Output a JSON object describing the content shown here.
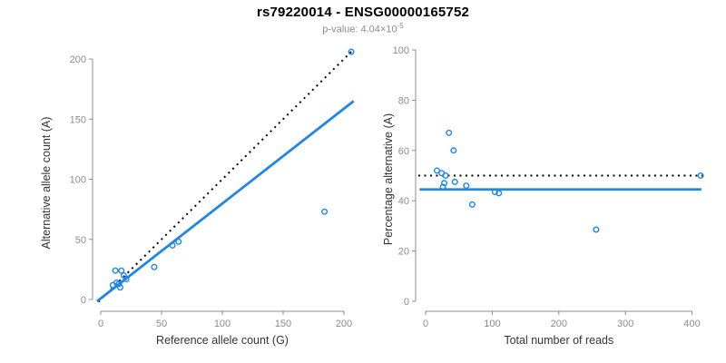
{
  "header": {
    "title": "rs79220014 - ENSG00000165752",
    "subtitle_prefix": "p-value: 4.04×10",
    "subtitle_exponent": "-5"
  },
  "colors": {
    "accent_blue": "#1e86e5",
    "axis_gray": "#8c8c8c",
    "tick_label_gray": "#8c8c8c",
    "axis_title_dark": "#333333",
    "dotted_line_black": "#000000",
    "background": "#ffffff"
  },
  "chart_data": [
    {
      "type": "scatter",
      "name": "allele-counts-scatter",
      "xlabel": "Reference allele count (G)",
      "ylabel": "Alternative allele count (A)",
      "xlim": [
        0,
        200
      ],
      "ylim": [
        0,
        200
      ],
      "xticks": [
        0,
        50,
        100,
        150,
        200
      ],
      "yticks": [
        0,
        50,
        100,
        150,
        200
      ],
      "grid": false,
      "points": [
        [
          10,
          12
        ],
        [
          13,
          14
        ],
        [
          15,
          13
        ],
        [
          16,
          10
        ],
        [
          12,
          24
        ],
        [
          17,
          24
        ],
        [
          19,
          20
        ],
        [
          21,
          17
        ],
        [
          44,
          27
        ],
        [
          59,
          45
        ],
        [
          64,
          48
        ],
        [
          184,
          73
        ],
        [
          206,
          206
        ]
      ],
      "lines": [
        {
          "name": "identity-line",
          "style": "dotted",
          "color": "black",
          "from": [
            -2,
            -2
          ],
          "to": [
            207,
            207
          ]
        },
        {
          "name": "regression-line",
          "style": "solid",
          "color": "blue",
          "from": [
            -3,
            -1.5
          ],
          "to": [
            208,
            165
          ]
        }
      ]
    },
    {
      "type": "scatter",
      "name": "percentage-alternative-scatter",
      "xlabel": "Total number of reads",
      "ylabel": "Percentage alternative (A)",
      "xlim": [
        0,
        400
      ],
      "ylim": [
        0,
        100
      ],
      "xticks": [
        0,
        100,
        200,
        300,
        400
      ],
      "yticks": [
        0,
        20,
        40,
        60,
        80,
        100
      ],
      "grid": false,
      "points": [
        [
          17,
          52
        ],
        [
          24,
          51
        ],
        [
          30,
          50
        ],
        [
          28,
          47
        ],
        [
          26,
          45.5
        ],
        [
          35,
          67
        ],
        [
          42,
          60
        ],
        [
          44,
          47.5
        ],
        [
          61,
          46
        ],
        [
          70,
          38.5
        ],
        [
          104,
          43.5
        ],
        [
          110,
          43
        ],
        [
          256,
          28.5
        ],
        [
          413,
          50
        ]
      ],
      "lines": [
        {
          "name": "fifty-percent-line",
          "style": "dotted",
          "color": "black",
          "from": [
            -11,
            50
          ],
          "to": [
            416,
            50
          ]
        },
        {
          "name": "mean-percentage-line",
          "style": "solid",
          "color": "blue",
          "from": [
            -9,
            44.5
          ],
          "to": [
            414,
            44.5
          ]
        }
      ]
    }
  ]
}
